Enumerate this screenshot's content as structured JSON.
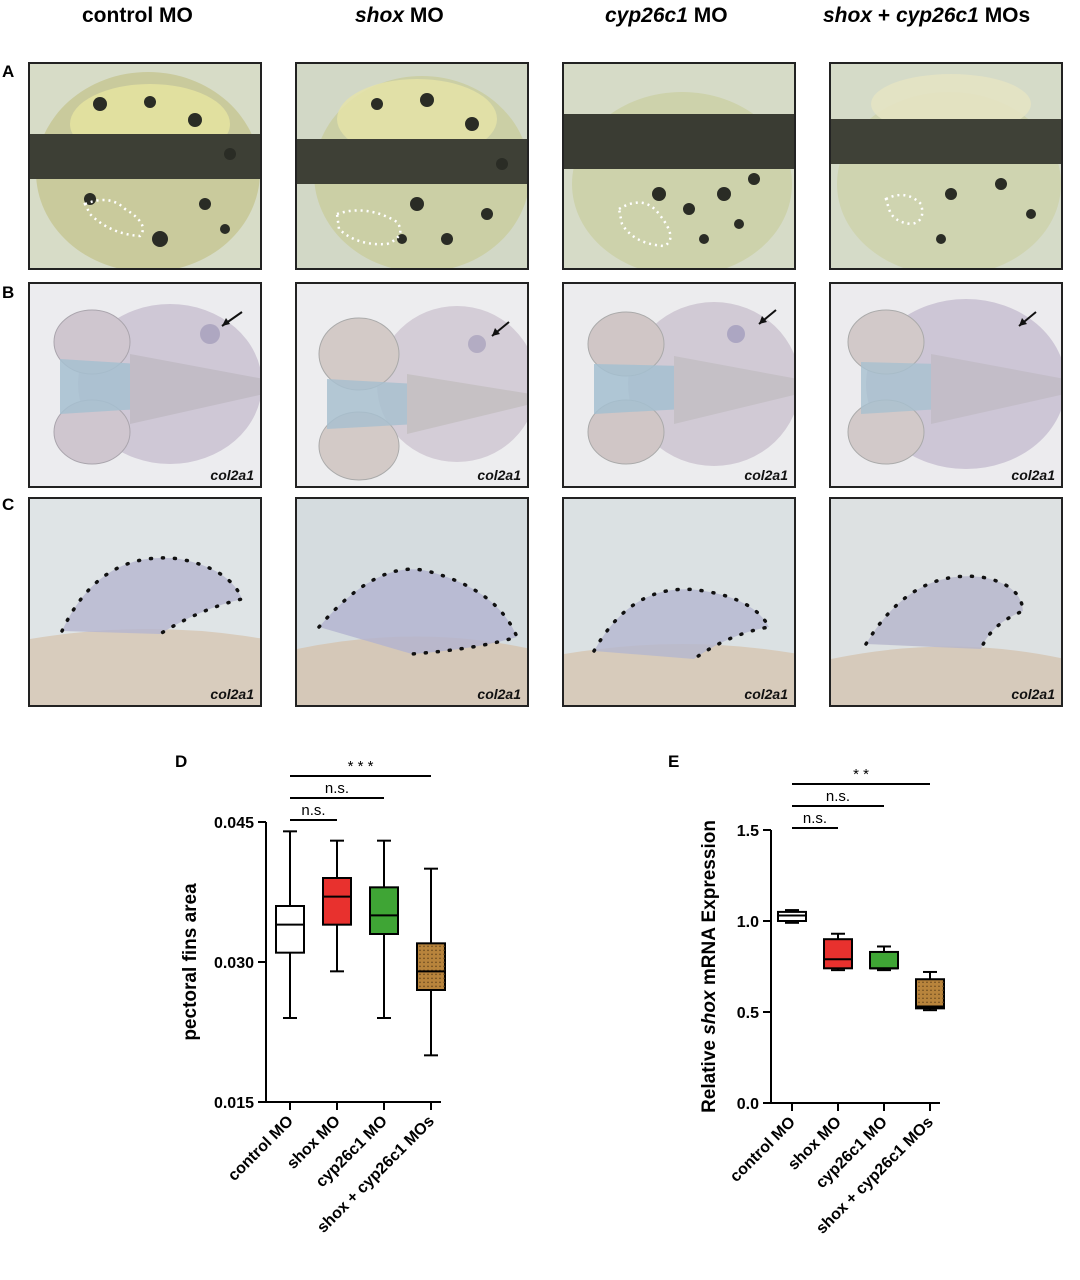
{
  "columns": [
    {
      "prefix": "control",
      "italic": "",
      "suffix": " MO"
    },
    {
      "prefix": "",
      "italic": "shox",
      "suffix": " MO"
    },
    {
      "prefix": "",
      "italic": "cyp26c1",
      "suffix": " MO"
    },
    {
      "prefix": "",
      "italic": "shox",
      "suffix": " + ",
      "italic2": "cyp26c1",
      "suffix2": " MOs"
    }
  ],
  "rows": {
    "A": "A",
    "B": "B",
    "C": "C"
  },
  "gene_label": "col2a1",
  "colors": {
    "control": "#ffffff",
    "shox": "#e8312e",
    "cyp26c1": "#3fa535",
    "combo": "#b8843c"
  },
  "chart_data": [
    {
      "panel": "D",
      "type": "box",
      "categories": [
        "control MO",
        "shox MO",
        "cyp26c1 MO",
        "shox + cyp26c1 MOs"
      ],
      "ylabel": "pectoral fins area",
      "ylim": [
        0.015,
        0.045
      ],
      "yticks": [
        "0.015",
        "0.030",
        "0.045"
      ],
      "ytick_values": [
        0.015,
        0.03,
        0.045
      ],
      "boxes": [
        {
          "min": 0.024,
          "q1": 0.031,
          "median": 0.034,
          "q3": 0.036,
          "max": 0.044
        },
        {
          "min": 0.029,
          "q1": 0.034,
          "median": 0.037,
          "q3": 0.039,
          "max": 0.043
        },
        {
          "min": 0.024,
          "q1": 0.033,
          "median": 0.035,
          "q3": 0.038,
          "max": 0.043
        },
        {
          "min": 0.02,
          "q1": 0.027,
          "median": 0.029,
          "q3": 0.032,
          "max": 0.04
        }
      ],
      "significance": [
        {
          "from": 0,
          "to": 1,
          "label": "n.s."
        },
        {
          "from": 0,
          "to": 2,
          "label": "n.s."
        },
        {
          "from": 0,
          "to": 3,
          "label": "* * *"
        }
      ]
    },
    {
      "panel": "E",
      "type": "box",
      "categories": [
        "control MO",
        "shox MO",
        "cyp26c1 MO",
        "shox + cyp26c1 MOs"
      ],
      "ylabel_pre": "Relative ",
      "ylabel_italic": "shox",
      "ylabel_post": " mRNA Expression",
      "ylim": [
        0.0,
        1.5
      ],
      "yticks": [
        "0.0",
        "0.5",
        "1.0",
        "1.5"
      ],
      "ytick_values": [
        0.0,
        0.5,
        1.0,
        1.5
      ],
      "boxes": [
        {
          "min": 0.99,
          "q1": 1.0,
          "median": 1.03,
          "q3": 1.05,
          "max": 1.06
        },
        {
          "min": 0.73,
          "q1": 0.74,
          "median": 0.79,
          "q3": 0.9,
          "max": 0.93
        },
        {
          "min": 0.73,
          "q1": 0.74,
          "median": 0.74,
          "q3": 0.83,
          "max": 0.86
        },
        {
          "min": 0.51,
          "q1": 0.52,
          "median": 0.53,
          "q3": 0.68,
          "max": 0.72
        }
      ],
      "significance": [
        {
          "from": 0,
          "to": 1,
          "label": "n.s."
        },
        {
          "from": 0,
          "to": 2,
          "label": "n.s."
        },
        {
          "from": 0,
          "to": 3,
          "label": "* *"
        }
      ]
    }
  ]
}
